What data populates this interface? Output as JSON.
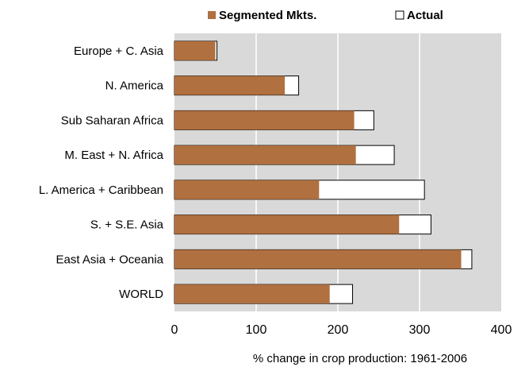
{
  "chart_data": {
    "type": "bar",
    "orientation": "horizontal",
    "title": "",
    "xlabel": "% change in crop production: 1961-2006",
    "ylabel": "",
    "xlim": [
      0,
      400
    ],
    "xticks": [
      "0",
      "100",
      "200",
      "300",
      "400"
    ],
    "grid": true,
    "legend_position": "top",
    "categories": [
      "Europe + C. Asia",
      "N. America",
      "Sub Saharan Africa",
      "M. East + N. Africa",
      "L. America + Caribbean",
      "S. + S.E. Asia",
      "East Asia + Oceania",
      "WORLD"
    ],
    "series": [
      {
        "name": "Segmented Mkts.",
        "color": "#b07040",
        "values": [
          50,
          135,
          220,
          222,
          177,
          275,
          351,
          190
        ]
      },
      {
        "name": "Actual",
        "color": "#ffffff",
        "values": [
          52,
          152,
          244,
          269,
          306,
          314,
          364,
          218
        ]
      }
    ]
  },
  "style": {
    "plot_background": "#d9d9d9",
    "gridline_color": "#ffffff",
    "outline_color": "#000000"
  }
}
